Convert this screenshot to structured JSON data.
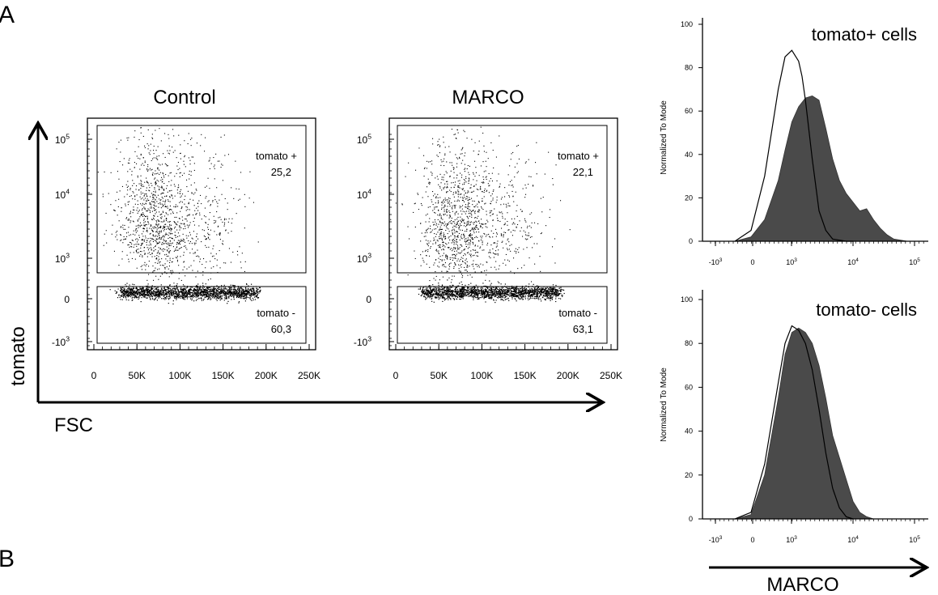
{
  "panel_labels": [
    "A",
    "B"
  ],
  "colors": {
    "points": "#000000",
    "filled_histogram": "#4a4a4a",
    "outline_histogram": "#000000"
  },
  "big_axes": {
    "x_label": "FSC",
    "y_label": "tomato",
    "right_label": "MARCO"
  },
  "chart_data": [
    {
      "type": "scatter",
      "title": "Control",
      "x_tick_labels": [
        "0",
        "50K",
        "100K",
        "150K",
        "200K",
        "250K"
      ],
      "y_tick_labels": [
        "-10^3",
        "0",
        "10^3",
        "10^4",
        "10^5"
      ],
      "gates": [
        {
          "name": "tomato +",
          "percent": "25,2"
        },
        {
          "name": "tomato -",
          "percent": "60,3"
        }
      ]
    },
    {
      "type": "scatter",
      "title": "MARCO",
      "x_tick_labels": [
        "0",
        "50K",
        "100K",
        "150K",
        "200K",
        "250K"
      ],
      "y_tick_labels": [
        "-10^3",
        "0",
        "10^3",
        "10^4",
        "10^5"
      ],
      "gates": [
        {
          "name": "tomato +",
          "percent": "22,1"
        },
        {
          "name": "tomato -",
          "percent": "63,1"
        }
      ]
    },
    {
      "type": "area",
      "title": "tomato+ cells",
      "ylabel": "Normalized To Mode",
      "ylim": [
        0,
        100
      ],
      "y_ticks": [
        "0",
        "20",
        "40",
        "60",
        "80",
        "100"
      ],
      "x_tick_labels": [
        "-10^3",
        "0",
        "10^3",
        "10^4",
        "10^5"
      ],
      "series": [
        {
          "x": [
            -300,
            0,
            0.4,
            0.8,
            1.0,
            1.2,
            1.4,
            1.6,
            1.8,
            2.0,
            2.2,
            2.4,
            2.6,
            2.8,
            3.0,
            3.2,
            3.4,
            3.6,
            3.8,
            4.0,
            4.2,
            4.4,
            4.6
          ],
          "y": [
            0,
            2,
            10,
            28,
            42,
            55,
            62,
            66,
            67,
            65,
            52,
            38,
            28,
            22,
            18,
            14,
            15,
            10,
            6,
            3,
            1,
            0.5,
            0
          ]
        },
        {
          "x": [
            -300,
            0,
            0.4,
            0.8,
            1.0,
            1.2,
            1.4,
            1.5,
            1.6,
            1.8,
            2.0,
            2.2,
            2.4,
            2.6,
            2.8,
            3.0
          ],
          "y": [
            0,
            5,
            30,
            70,
            85,
            88,
            83,
            76,
            65,
            38,
            14,
            5,
            1,
            0.5,
            0,
            0
          ]
        }
      ]
    },
    {
      "type": "area",
      "title": "tomato- cells",
      "ylabel": "Normalized To Mode",
      "ylim": [
        0,
        100
      ],
      "y_ticks": [
        "0",
        "20",
        "40",
        "60",
        "80",
        "100"
      ],
      "x_tick_labels": [
        "-10^3",
        "0",
        "10^3",
        "10^4",
        "10^5"
      ],
      "series": [
        {
          "x": [
            -300,
            0,
            0.4,
            0.8,
            1.0,
            1.2,
            1.4,
            1.6,
            1.8,
            2.0,
            2.2,
            2.4,
            2.6,
            2.8,
            3.0,
            3.2,
            3.4,
            3.6,
            3.8
          ],
          "y": [
            0,
            2,
            20,
            55,
            75,
            85,
            87,
            85,
            80,
            70,
            55,
            38,
            28,
            18,
            8,
            3,
            1,
            0,
            0
          ]
        },
        {
          "x": [
            -300,
            0,
            0.4,
            0.8,
            1.0,
            1.2,
            1.4,
            1.6,
            1.8,
            2.0,
            2.2,
            2.4,
            2.6,
            2.8,
            3.0
          ],
          "y": [
            0,
            3,
            25,
            62,
            80,
            88,
            86,
            80,
            68,
            50,
            30,
            14,
            5,
            1,
            0
          ]
        }
      ]
    }
  ]
}
